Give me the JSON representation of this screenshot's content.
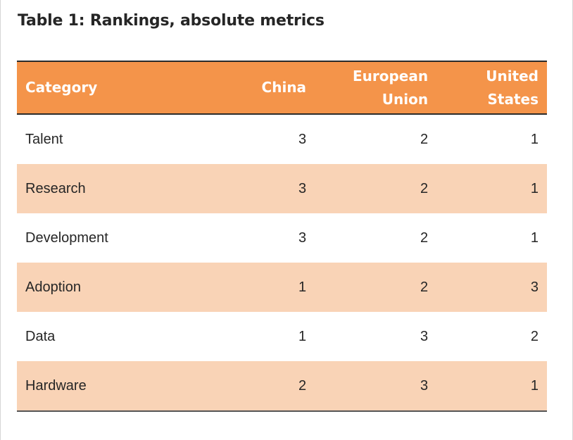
{
  "title": "Table 1: Rankings, absolute metrics",
  "table": {
    "headers": {
      "category": "Category",
      "china": "China",
      "eu_line1": "European",
      "eu_line2": "Union",
      "us_line1": "United",
      "us_line2": "States"
    },
    "rows": [
      {
        "category": "Talent",
        "china": "3",
        "eu": "2",
        "us": "1"
      },
      {
        "category": "Research",
        "china": "3",
        "eu": "2",
        "us": "1"
      },
      {
        "category": "Development",
        "china": "3",
        "eu": "2",
        "us": "1"
      },
      {
        "category": "Adoption",
        "china": "1",
        "eu": "2",
        "us": "3"
      },
      {
        "category": "Data",
        "china": "1",
        "eu": "3",
        "us": "2"
      },
      {
        "category": "Hardware",
        "china": "2",
        "eu": "3",
        "us": "1"
      }
    ]
  },
  "colors": {
    "header_bg": "#f4944a",
    "stripe_bg": "#f9d3b6",
    "text": "#262626"
  }
}
